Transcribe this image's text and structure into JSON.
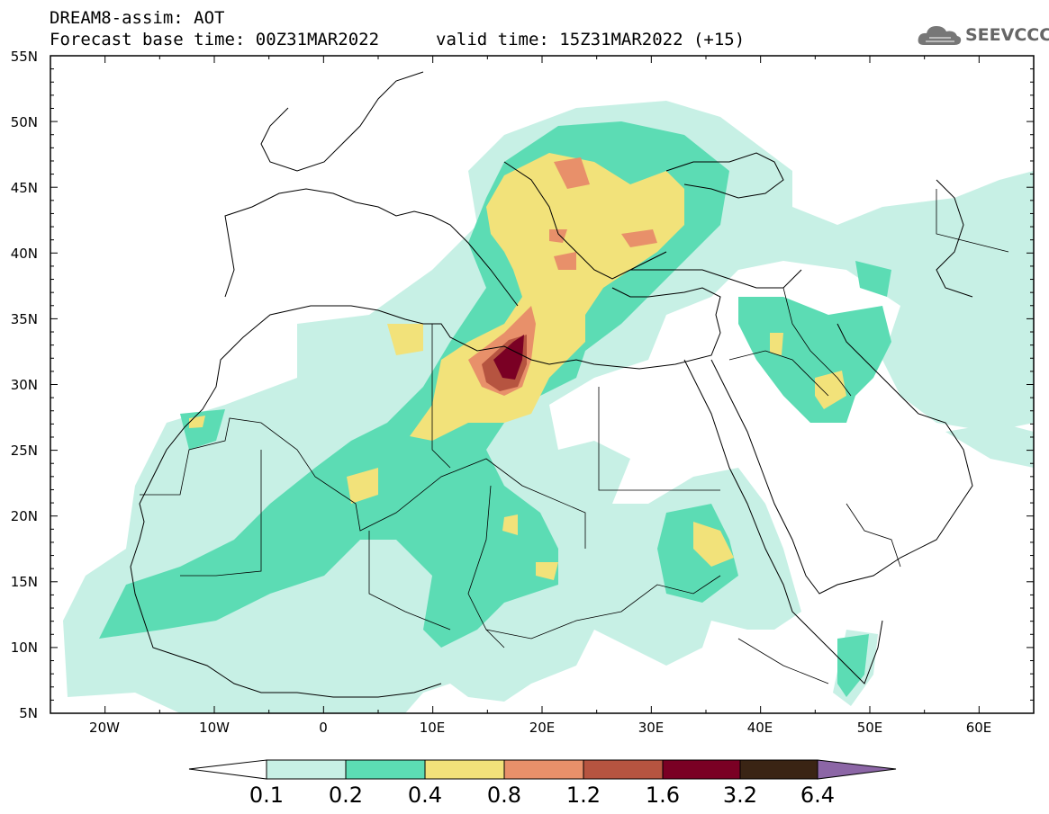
{
  "header": {
    "line1": "DREAM8-assim: AOT",
    "line2": "Forecast base time: 00Z31MAR2022",
    "line3": "valid time: 15Z31MAR2022 (+15)"
  },
  "logo": {
    "text": "SEEVCCC",
    "icon": "cloud-icon"
  },
  "map": {
    "lat_labels": [
      "55N",
      "50N",
      "45N",
      "40N",
      "35N",
      "30N",
      "25N",
      "20N",
      "15N",
      "10N",
      "5N"
    ],
    "lon_labels": [
      "20W",
      "10W",
      "0",
      "10E",
      "20E",
      "30E",
      "40E",
      "50E",
      "60E"
    ],
    "lat_range": [
      5,
      55
    ],
    "lon_range": [
      -25,
      65
    ]
  },
  "colorbar": {
    "labels": [
      "0.1",
      "0.2",
      "0.4",
      "0.8",
      "1.2",
      "1.6",
      "3.2",
      "6.4"
    ],
    "colors": [
      "#c7f0e5",
      "#5cdcb4",
      "#f2e27a",
      "#e8906a",
      "#b65440",
      "#7a0024",
      "#3a2414",
      "#8c66a6"
    ]
  }
}
